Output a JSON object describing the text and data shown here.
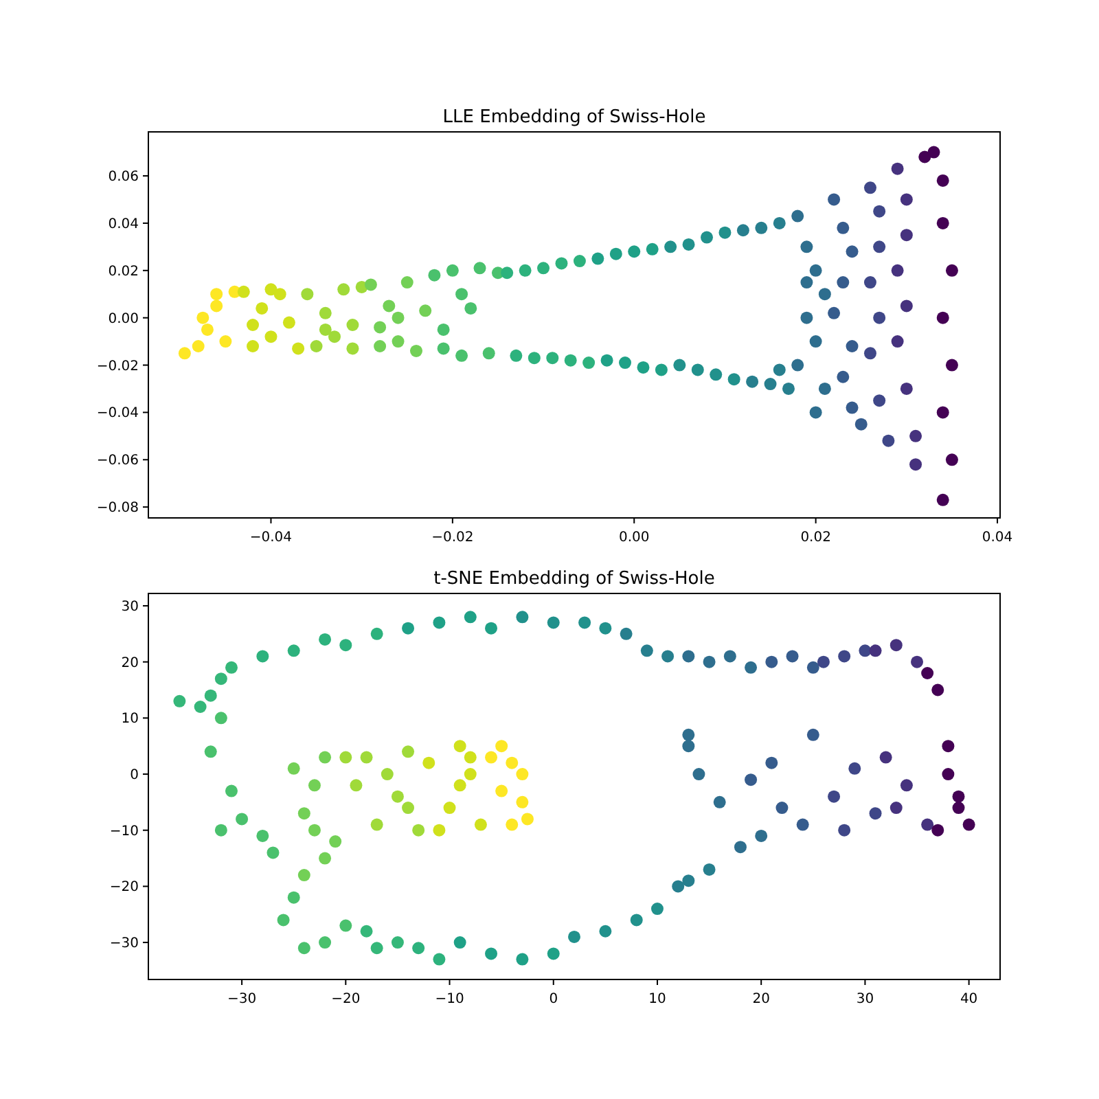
{
  "chart_data": [
    {
      "type": "scatter",
      "title": "LLE Embedding of Swiss-Hole",
      "marker": "circle",
      "xlim": [
        -0.0535,
        0.0403
      ],
      "ylim": [
        -0.0846,
        0.0786
      ],
      "xticks": [
        {
          "value": -0.04,
          "label": "−0.04"
        },
        {
          "value": -0.02,
          "label": "−0.02"
        },
        {
          "value": 0,
          "label": "0.00"
        },
        {
          "value": 0.02,
          "label": "0.02"
        },
        {
          "value": 0.04,
          "label": "0.04"
        }
      ],
      "yticks": [
        {
          "value": -0.08,
          "label": "−0.08"
        },
        {
          "value": -0.06,
          "label": "−0.06"
        },
        {
          "value": -0.04,
          "label": "−0.04"
        },
        {
          "value": -0.02,
          "label": "−0.02"
        },
        {
          "value": 0,
          "label": "0.00"
        },
        {
          "value": 0.02,
          "label": "0.02"
        },
        {
          "value": 0.04,
          "label": "0.04"
        },
        {
          "value": 0.06,
          "label": "0.06"
        }
      ],
      "series": [
        {
          "color": "#fde725",
          "x": [
            -0.0495,
            -0.048,
            -0.047,
            -0.046,
            -0.046,
            -0.045,
            -0.0475,
            -0.044
          ],
          "values": [
            -0.015,
            -0.012,
            -0.005,
            0.005,
            0.01,
            -0.01,
            0.0,
            0.011
          ]
        },
        {
          "color": "#d0e11c",
          "x": [
            -0.043,
            -0.042,
            -0.041,
            -0.04,
            -0.039,
            -0.038,
            -0.042,
            -0.04,
            -0.037
          ],
          "values": [
            0.011,
            -0.012,
            0.004,
            -0.008,
            0.01,
            -0.002,
            -0.003,
            0.012,
            -0.013
          ]
        },
        {
          "color": "#a0da39",
          "x": [
            -0.036,
            -0.035,
            -0.034,
            -0.033,
            -0.032,
            -0.031,
            -0.03,
            -0.034,
            -0.031
          ],
          "values": [
            0.01,
            -0.012,
            0.002,
            -0.008,
            0.012,
            -0.003,
            0.013,
            -0.005,
            -0.013
          ]
        },
        {
          "color": "#73d056",
          "x": [
            -0.029,
            -0.028,
            -0.027,
            -0.026,
            -0.025,
            -0.024,
            -0.023,
            -0.026,
            -0.028
          ],
          "values": [
            0.014,
            -0.012,
            0.005,
            -0.01,
            0.015,
            -0.014,
            0.003,
            0.0,
            -0.004
          ]
        },
        {
          "color": "#4ac16d",
          "x": [
            -0.022,
            -0.021,
            -0.02,
            -0.019,
            -0.018,
            -0.017,
            -0.016,
            -0.019,
            -0.021,
            -0.015
          ],
          "values": [
            0.018,
            -0.013,
            0.02,
            -0.016,
            0.004,
            0.021,
            -0.015,
            0.01,
            -0.005,
            0.019
          ]
        },
        {
          "color": "#2db27d",
          "x": [
            -0.014,
            -0.012,
            -0.01,
            -0.008,
            -0.006,
            -0.013,
            -0.011,
            -0.009,
            -0.007,
            -0.005
          ],
          "values": [
            0.019,
            0.02,
            0.021,
            0.023,
            0.024,
            -0.016,
            -0.017,
            -0.017,
            -0.018,
            -0.019
          ]
        },
        {
          "color": "#1fa187",
          "x": [
            -0.004,
            -0.002,
            0.0,
            0.002,
            -0.003,
            -0.001,
            0.001,
            0.003
          ],
          "values": [
            0.025,
            0.027,
            0.028,
            0.029,
            -0.018,
            -0.019,
            -0.021,
            -0.022
          ]
        },
        {
          "color": "#21918c",
          "x": [
            0.004,
            0.006,
            0.008,
            0.01,
            0.005,
            0.007,
            0.009,
            0.011
          ],
          "values": [
            0.03,
            0.031,
            0.034,
            0.036,
            -0.02,
            -0.022,
            -0.024,
            -0.026
          ]
        },
        {
          "color": "#277f8e",
          "x": [
            0.012,
            0.014,
            0.016,
            0.013,
            0.015,
            0.017,
            0.016
          ],
          "values": [
            0.037,
            0.038,
            0.04,
            -0.027,
            -0.028,
            -0.03,
            -0.022
          ]
        },
        {
          "color": "#2e6e8e",
          "x": [
            0.018,
            0.019,
            0.02,
            0.021,
            0.019,
            0.02,
            0.018,
            0.021,
            0.02,
            0.019
          ],
          "values": [
            0.043,
            0.03,
            0.02,
            0.01,
            0.0,
            -0.01,
            -0.02,
            -0.03,
            -0.04,
            0.015
          ]
        },
        {
          "color": "#365c8d",
          "x": [
            0.022,
            0.023,
            0.024,
            0.023,
            0.022,
            0.024,
            0.023,
            0.024,
            0.025
          ],
          "values": [
            0.05,
            0.038,
            0.028,
            0.015,
            0.002,
            -0.012,
            -0.025,
            -0.038,
            -0.045
          ]
        },
        {
          "color": "#3f4788",
          "x": [
            0.026,
            0.027,
            0.027,
            0.026,
            0.027,
            0.026,
            0.027,
            0.028
          ],
          "values": [
            0.055,
            0.045,
            0.03,
            0.015,
            0.0,
            -0.015,
            -0.035,
            -0.052
          ]
        },
        {
          "color": "#46327e",
          "x": [
            0.029,
            0.03,
            0.03,
            0.029,
            0.03,
            0.029,
            0.03,
            0.031,
            0.031
          ],
          "values": [
            0.063,
            0.05,
            0.035,
            0.02,
            0.005,
            -0.01,
            -0.03,
            -0.05,
            -0.062
          ]
        },
        {
          "color": "#440154",
          "x": [
            0.032,
            0.033,
            0.034,
            0.034,
            0.035,
            0.034,
            0.035,
            0.034,
            0.035,
            0.034
          ],
          "values": [
            0.068,
            0.07,
            0.058,
            0.04,
            0.02,
            0.0,
            -0.02,
            -0.04,
            -0.06,
            -0.077
          ]
        }
      ]
    },
    {
      "type": "scatter",
      "title": "t-SNE Embedding of Swiss-Hole",
      "marker": "circle",
      "xlim": [
        -39,
        43
      ],
      "ylim": [
        -36.6,
        32.2
      ],
      "xticks": [
        {
          "value": -30,
          "label": "−30"
        },
        {
          "value": -20,
          "label": "−20"
        },
        {
          "value": -10,
          "label": "−10"
        },
        0,
        10,
        20,
        30,
        40
      ],
      "yticks": [
        {
          "value": -30,
          "label": "−30"
        },
        {
          "value": -20,
          "label": "−20"
        },
        {
          "value": -10,
          "label": "−10"
        },
        0,
        10,
        20,
        30
      ],
      "series": [
        {
          "color": "#fde725",
          "x": [
            -5,
            -4,
            -3,
            -3,
            -4,
            -5,
            -2.5,
            -6
          ],
          "values": [
            5,
            2,
            0,
            -5,
            -9,
            -3,
            -8,
            3
          ]
        },
        {
          "color": "#d0e11c",
          "x": [
            -8,
            -9,
            -10,
            -7,
            -9,
            -11,
            -8,
            -12
          ],
          "values": [
            3,
            -2,
            -6,
            -9,
            5,
            -10,
            0,
            2
          ]
        },
        {
          "color": "#a0da39",
          "x": [
            -14,
            -15,
            -17,
            -13,
            -16,
            -18,
            -14,
            -20,
            -19
          ],
          "values": [
            4,
            -4,
            -9,
            -10,
            0,
            3,
            -6,
            3,
            -2
          ]
        },
        {
          "color": "#73d056",
          "x": [
            -22,
            -23,
            -24,
            -21,
            -22,
            -25,
            -23,
            -24
          ],
          "values": [
            3,
            -2,
            -7,
            -12,
            -15,
            1,
            -10,
            -18
          ]
        },
        {
          "color": "#4ac16d",
          "x": [
            -32,
            -33,
            -31,
            -30,
            -32,
            -28,
            -27,
            -26,
            -25,
            -22,
            -20,
            -24
          ],
          "values": [
            10,
            4,
            -3,
            -8,
            -10,
            -11,
            -14,
            -26,
            -22,
            -30,
            -27,
            -31
          ]
        },
        {
          "color": "#35b779",
          "x": [
            -36,
            -34,
            -33,
            -32,
            -31,
            -15,
            -17,
            -18
          ],
          "values": [
            13,
            12,
            14,
            17,
            19,
            -30,
            -31,
            -28
          ]
        },
        {
          "color": "#2db27d",
          "x": [
            -28,
            -25,
            -22,
            -20,
            -17,
            -13,
            -11
          ],
          "values": [
            21,
            22,
            24,
            23,
            25,
            -31,
            -33
          ]
        },
        {
          "color": "#1fa187",
          "x": [
            -14,
            -11,
            -8,
            -6,
            -9,
            -6,
            -3,
            0
          ],
          "values": [
            26,
            27,
            28,
            26,
            -30,
            -32,
            -33,
            -32
          ]
        },
        {
          "color": "#21918c",
          "x": [
            -3,
            0,
            3,
            5,
            2,
            5,
            8,
            10
          ],
          "values": [
            28,
            27,
            27,
            26,
            -29,
            -28,
            -26,
            -24
          ]
        },
        {
          "color": "#277f8e",
          "x": [
            7,
            9,
            11,
            12,
            13,
            15
          ],
          "values": [
            25,
            22,
            21,
            -20,
            -19,
            -17
          ]
        },
        {
          "color": "#2e6e8e",
          "x": [
            13,
            15,
            17,
            19,
            18,
            20,
            13,
            14,
            16,
            13
          ],
          "values": [
            21,
            20,
            21,
            19,
            -13,
            -11,
            5,
            0,
            -5,
            7
          ]
        },
        {
          "color": "#365c8d",
          "x": [
            21,
            23,
            25,
            19,
            21,
            24,
            22,
            25
          ],
          "values": [
            20,
            21,
            19,
            -1,
            2,
            -9,
            -6,
            7
          ]
        },
        {
          "color": "#3f4788",
          "x": [
            26,
            28,
            30,
            27,
            29,
            31,
            28
          ],
          "values": [
            20,
            21,
            22,
            -4,
            1,
            -7,
            -10
          ]
        },
        {
          "color": "#46327e",
          "x": [
            31,
            33,
            35,
            32,
            34,
            36,
            33
          ],
          "values": [
            22,
            23,
            20,
            3,
            -2,
            -9,
            -6
          ]
        },
        {
          "color": "#440154",
          "x": [
            36,
            37,
            38,
            38,
            39,
            40,
            37,
            39
          ],
          "values": [
            18,
            15,
            5,
            0,
            -4,
            -9,
            -10,
            -6
          ]
        }
      ]
    }
  ]
}
